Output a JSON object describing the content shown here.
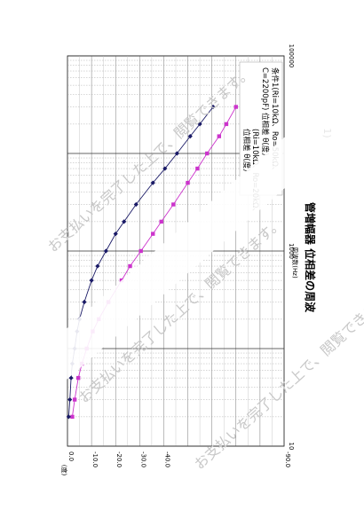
{
  "chart_data": {
    "type": "scatter",
    "title": "管増幅器 位相差の周波",
    "xlabel": "周波数(Hz)",
    "ylabel": "(度)",
    "x_scale": "log",
    "xlim": [
      10,
      100000
    ],
    "ylim": [
      -90,
      0
    ],
    "x_tick_labels": [
      "10",
      "1000",
      "100000"
    ],
    "y_tick_labels": [
      "0.0",
      "-10.0",
      "-20.0",
      "-30.0",
      "-40.0",
      "-90.0"
    ],
    "grid": true,
    "page_label": "1)",
    "series": [
      {
        "name": "条件1(Ri=10kΩ、Ro=50kΩ、C=2200pF) 位相差 θ(度)",
        "color": "#cc33cc",
        "x": [
          20,
          30,
          50,
          70,
          100,
          150,
          200,
          300,
          500,
          700,
          1000,
          1500,
          2000,
          3000,
          5000,
          7000,
          10000,
          15000,
          20000,
          30000
        ],
        "y": [
          -2.0,
          -3.0,
          -4.5,
          -6.0,
          -8.0,
          -10.5,
          -13.0,
          -17.0,
          -22.5,
          -26.0,
          -30.5,
          -35.5,
          -39.0,
          -44.0,
          -50.0,
          -54.0,
          -58.0,
          -63.0,
          -66.0,
          -70.0
        ]
      },
      {
        "name": "条件2(Ri=10kΩ、Ro=20kΩ) 位相差 θ(度)",
        "color": "#1a1a66",
        "x": [
          20,
          30,
          50,
          70,
          100,
          150,
          200,
          300,
          500,
          700,
          1000,
          1500,
          2000,
          3000,
          5000,
          7000,
          10000,
          15000,
          20000,
          30000
        ],
        "y": [
          -0.5,
          -1.0,
          -1.5,
          -2.0,
          -3.0,
          -4.0,
          -5.0,
          -7.0,
          -10.0,
          -12.5,
          -16.0,
          -20.0,
          -23.5,
          -28.5,
          -35.5,
          -40.5,
          -45.5,
          -51.0,
          -55.0,
          -60.5
        ]
      }
    ]
  },
  "legend_box": {
    "line1": "条件1(Ri=10kΩ、Ro=50kΩ、",
    "line2": "C=2200pF) 位相差 θ(度)",
    "line3": "(Ri=10kΩ、Ro=20kΩ、",
    "line4": "位相差 θ(度)"
  },
  "watermark": "お支払いを完了した上で、閲覧できます。"
}
